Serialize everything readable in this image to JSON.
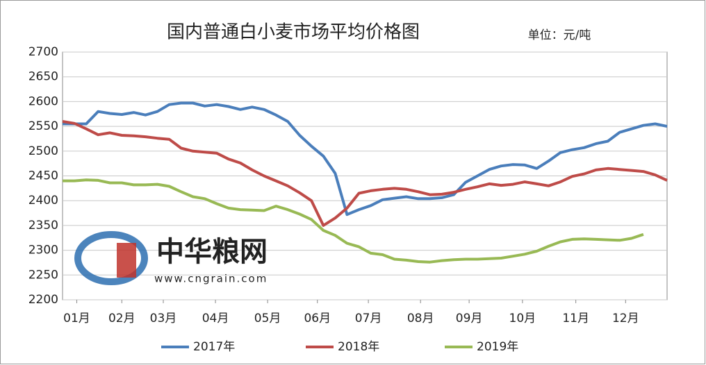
{
  "chart_data": {
    "type": "line",
    "title": "国内普通白小麦市场平均价格图",
    "unit_label": "单位：元/吨",
    "watermark": "中华粮网",
    "watermark_url": "www.cngrain.com",
    "x": [
      0,
      1,
      2,
      3,
      4,
      5,
      6,
      7,
      8,
      9,
      10,
      11,
      12,
      13,
      14,
      15,
      16,
      17,
      18,
      19,
      20,
      21,
      22,
      23,
      24,
      25,
      26,
      27,
      28,
      29,
      30,
      31,
      32,
      33,
      34,
      35,
      36,
      37,
      38,
      39,
      40,
      41,
      42,
      43,
      44,
      45,
      46,
      47,
      48,
      49,
      50,
      51
    ],
    "xlim": [
      0,
      51
    ],
    "xticks": [
      {
        "value": 1.2,
        "label": "01月"
      },
      {
        "value": 5,
        "label": "02月"
      },
      {
        "value": 8.5,
        "label": "03月"
      },
      {
        "value": 12.9,
        "label": "04月"
      },
      {
        "value": 17.3,
        "label": "05月"
      },
      {
        "value": 21.5,
        "label": "06月"
      },
      {
        "value": 25.8,
        "label": "07月"
      },
      {
        "value": 30.2,
        "label": "08月"
      },
      {
        "value": 34.3,
        "label": "09月"
      },
      {
        "value": 38.8,
        "label": "10月"
      },
      {
        "value": 43.3,
        "label": "11月"
      },
      {
        "value": 47.5,
        "label": "12月"
      }
    ],
    "ylim": [
      2200,
      2700
    ],
    "yticks": [
      2200,
      2250,
      2300,
      2350,
      2400,
      2450,
      2500,
      2550,
      2600,
      2650,
      2700
    ],
    "grid": true,
    "legend": "bottom",
    "series": [
      {
        "name": "2017年",
        "color": "#4a7ebb",
        "values": [
          2555,
          2555,
          2555,
          2580,
          2576,
          2574,
          2578,
          2573,
          2580,
          2594,
          2597,
          2597,
          2591,
          2594,
          2590,
          2584,
          2589,
          2584,
          2573,
          2560,
          2532,
          2510,
          2490,
          2455,
          2372,
          2382,
          2390,
          2402,
          2405,
          2408,
          2404,
          2404,
          2406,
          2412,
          2437,
          2450,
          2463,
          2470,
          2473,
          2472,
          2465,
          2480,
          2497,
          2503,
          2507,
          2515,
          2520,
          2538,
          2545,
          2552,
          2555,
          2550
        ]
      },
      {
        "name": "2018年",
        "color": "#be4b48",
        "values": [
          2560,
          2556,
          2545,
          2533,
          2537,
          2532,
          2531,
          2529,
          2526,
          2524,
          2506,
          2500,
          2498,
          2496,
          2484,
          2476,
          2462,
          2450,
          2440,
          2430,
          2416,
          2400,
          2350,
          2365,
          2385,
          2415,
          2420,
          2423,
          2425,
          2423,
          2418,
          2412,
          2413,
          2417,
          2423,
          2428,
          2434,
          2431,
          2433,
          2438,
          2434,
          2430,
          2438,
          2449,
          2454,
          2462,
          2465,
          2463,
          2461,
          2459,
          2452,
          2441
        ]
      },
      {
        "name": "2019年",
        "color": "#98b954",
        "values": [
          2440,
          2440,
          2442,
          2441,
          2436,
          2436,
          2432,
          2432,
          2433,
          2429,
          2418,
          2408,
          2404,
          2394,
          2385,
          2382,
          2381,
          2380,
          2389,
          2382,
          2373,
          2362,
          2340,
          2330,
          2314,
          2307,
          2294,
          2291,
          2282,
          2280,
          2277,
          2276,
          2279,
          2281,
          2282,
          2282,
          2283,
          2284,
          2288,
          2292,
          2298,
          2308,
          2317,
          2322,
          2323,
          2322,
          2321,
          2320,
          2324,
          2332,
          null,
          null
        ]
      }
    ]
  }
}
